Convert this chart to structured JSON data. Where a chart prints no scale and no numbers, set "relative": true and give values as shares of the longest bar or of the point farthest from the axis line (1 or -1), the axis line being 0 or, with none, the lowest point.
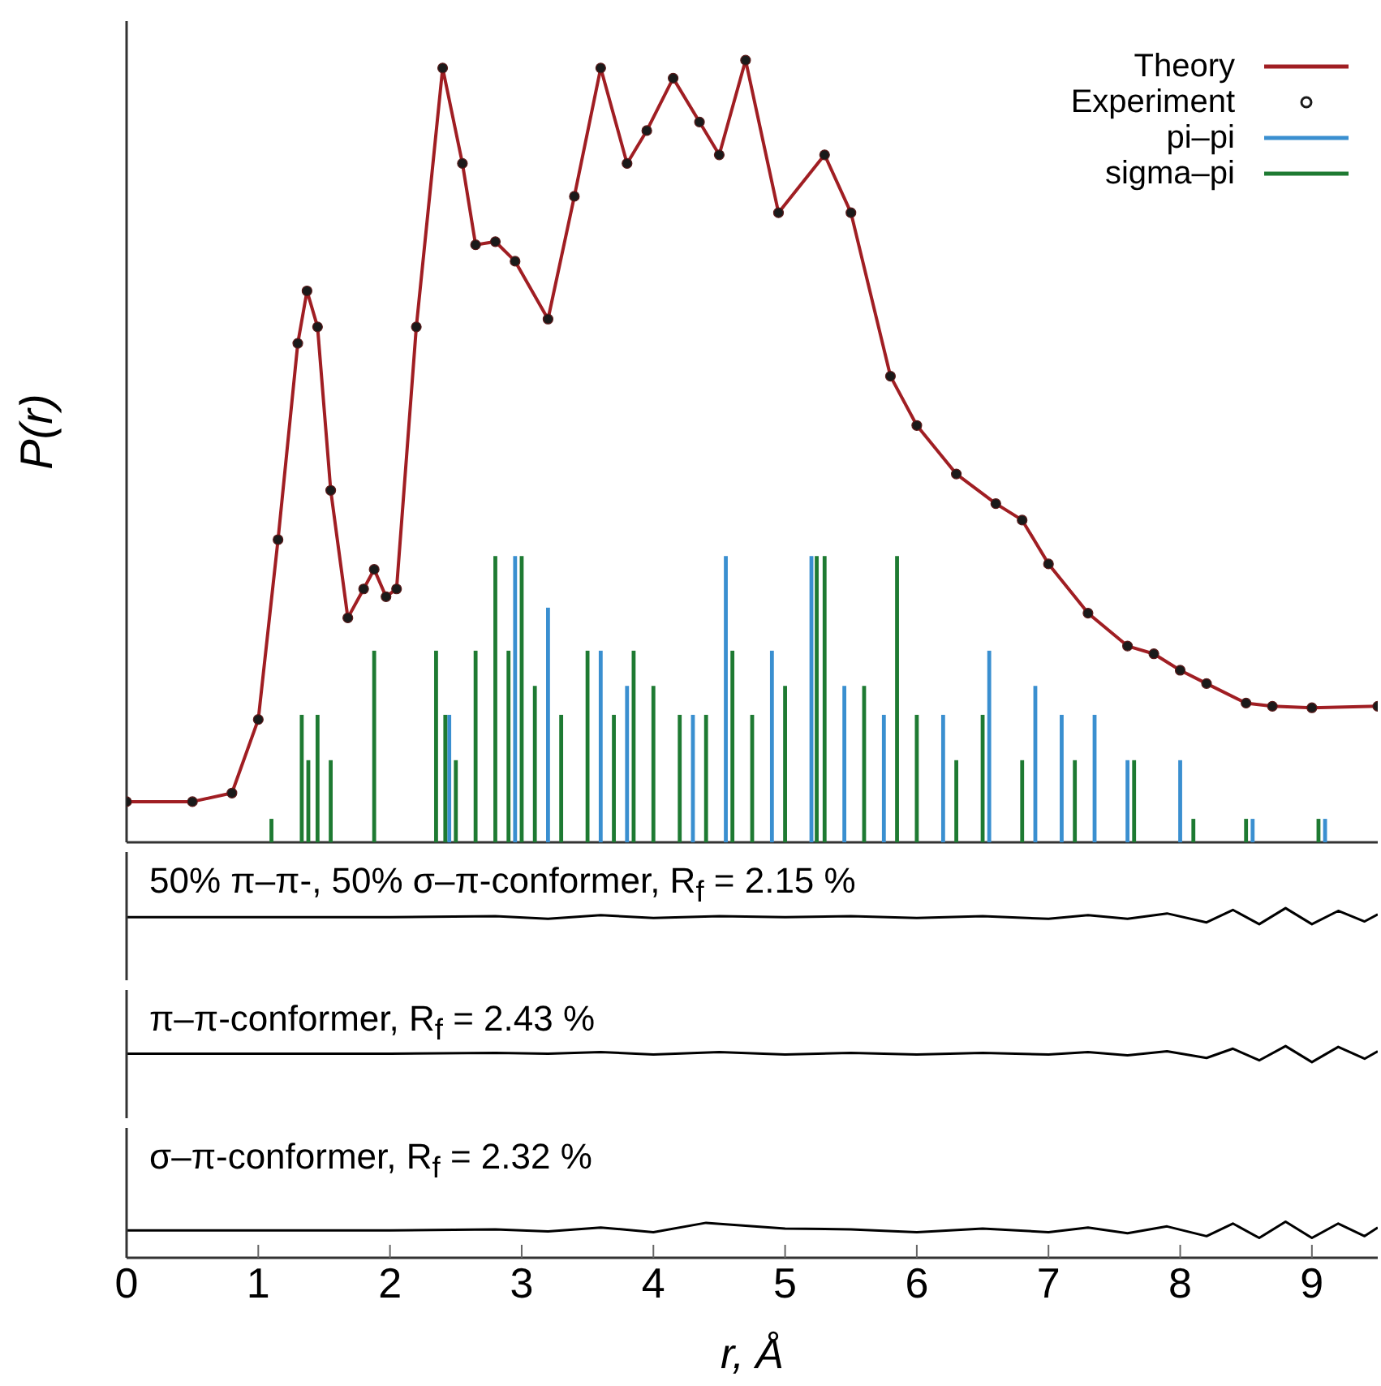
{
  "chart_data": [
    {
      "type": "line",
      "ylabel": "P(r)",
      "relative": true,
      "tick_labels": false,
      "xlim": [
        0,
        9.5
      ],
      "legend": "top right",
      "x": [
        0,
        0.5,
        0.8,
        1.0,
        1.15,
        1.3,
        1.37,
        1.45,
        1.55,
        1.68,
        1.8,
        1.88,
        1.97,
        2.05,
        2.2,
        2.4,
        2.55,
        2.65,
        2.8,
        2.95,
        3.2,
        3.4,
        3.6,
        3.8,
        3.95,
        4.15,
        4.35,
        4.5,
        4.7,
        4.95,
        5.3,
        5.5,
        5.8,
        6.0,
        6.3,
        6.6,
        6.8,
        7.0,
        7.3,
        7.6,
        7.8,
        8.0,
        8.2,
        8.5,
        8.7,
        9.0,
        9.5
      ],
      "series": [
        {
          "name": "Theory",
          "color": "#a01e23",
          "marker": "none",
          "values": [
            0.052,
            0.052,
            0.063,
            0.157,
            0.387,
            0.638,
            0.705,
            0.659,
            0.45,
            0.287,
            0.324,
            0.349,
            0.314,
            0.324,
            0.659,
            0.99,
            0.868,
            0.764,
            0.768,
            0.743,
            0.669,
            0.826,
            0.99,
            0.868,
            0.91,
            0.977,
            0.921,
            0.879,
            1.0,
            0.805,
            0.879,
            0.805,
            0.596,
            0.533,
            0.471,
            0.433,
            0.412,
            0.356,
            0.293,
            0.251,
            0.241,
            0.22,
            0.203,
            0.178,
            0.174,
            0.172,
            0.174
          ]
        },
        {
          "name": "Experiment",
          "type": "scatter",
          "color": "#1a1a1a",
          "marker": "circle",
          "values": [
            0.052,
            0.052,
            0.063,
            0.157,
            0.387,
            0.638,
            0.705,
            0.659,
            0.45,
            0.287,
            0.324,
            0.349,
            0.314,
            0.324,
            0.659,
            0.99,
            0.868,
            0.764,
            0.768,
            0.743,
            0.669,
            0.826,
            0.99,
            0.868,
            0.91,
            0.977,
            0.921,
            0.879,
            1.0,
            0.805,
            0.879,
            0.805,
            0.596,
            0.533,
            0.471,
            0.433,
            0.412,
            0.356,
            0.293,
            0.251,
            0.241,
            0.22,
            0.203,
            0.178,
            0.174,
            0.172,
            0.174
          ]
        },
        {
          "name": "pi–pi",
          "type": "bar",
          "color": "#3a8fd0",
          "x": [
            2.45,
            2.95,
            3.2,
            3.6,
            3.8,
            4.3,
            4.55,
            4.9,
            5.2,
            5.45,
            5.75,
            6.2,
            6.55,
            6.9,
            7.1,
            7.35,
            7.6,
            8.0,
            8.55,
            9.1
          ],
          "values": [
            0.163,
            0.366,
            0.3,
            0.245,
            0.2,
            0.163,
            0.366,
            0.245,
            0.366,
            0.2,
            0.163,
            0.163,
            0.245,
            0.2,
            0.163,
            0.163,
            0.105,
            0.105,
            0.03,
            0.03
          ]
        },
        {
          "name": "sigma–pi",
          "type": "bar",
          "color": "#1e7a32",
          "x": [
            1.1,
            1.33,
            1.38,
            1.45,
            1.55,
            1.88,
            2.35,
            2.42,
            2.5,
            2.65,
            2.8,
            2.9,
            3.0,
            3.1,
            3.3,
            3.5,
            3.7,
            3.85,
            4.0,
            4.2,
            4.4,
            4.6,
            4.75,
            5.0,
            5.24,
            5.3,
            5.6,
            5.85,
            6.0,
            6.3,
            6.5,
            6.8,
            7.2,
            7.65,
            8.1,
            8.5,
            9.05
          ],
          "values": [
            0.03,
            0.163,
            0.105,
            0.163,
            0.105,
            0.245,
            0.245,
            0.163,
            0.105,
            0.245,
            0.366,
            0.245,
            0.366,
            0.2,
            0.163,
            0.245,
            0.163,
            0.245,
            0.2,
            0.163,
            0.163,
            0.245,
            0.163,
            0.2,
            0.366,
            0.366,
            0.2,
            0.366,
            0.163,
            0.105,
            0.163,
            0.105,
            0.105,
            0.105,
            0.03,
            0.03,
            0.03
          ]
        }
      ]
    },
    {
      "type": "line",
      "relative": true,
      "tick_labels": false,
      "xlim": [
        0,
        9.5
      ],
      "color": "#000000",
      "annotations": [
        "50% π–π-, 50% σ–π-conformer, R$_{f}$ = 2.15 %"
      ],
      "x": [
        0,
        1,
        2,
        2.8,
        3.2,
        3.6,
        4.0,
        4.5,
        5,
        5.5,
        6,
        6.5,
        7,
        7.3,
        7.6,
        7.9,
        8.2,
        8.4,
        8.6,
        8.8,
        9.0,
        9.2,
        9.4,
        9.5
      ],
      "values": [
        0.44,
        0.44,
        0.44,
        0.5,
        0.33,
        0.56,
        0.39,
        0.5,
        0.44,
        0.5,
        0.39,
        0.5,
        0.33,
        0.56,
        0.33,
        0.67,
        0.11,
        0.89,
        0,
        1,
        0,
        0.83,
        0.17,
        0.61
      ]
    },
    {
      "type": "line",
      "relative": true,
      "tick_labels": false,
      "xlim": [
        0,
        9.5
      ],
      "color": "#000000",
      "annotations": [
        "π–π-conformer, R$_{f}$ = 2.43 %"
      ],
      "x": [
        0,
        1,
        2,
        2.8,
        3.2,
        3.6,
        4.0,
        4.5,
        5,
        5.5,
        6,
        6.5,
        7,
        7.3,
        7.6,
        7.9,
        8.2,
        8.4,
        8.6,
        8.8,
        9.0,
        9.2,
        9.4,
        9.5
      ],
      "values": [
        0.53,
        0.53,
        0.53,
        0.58,
        0.53,
        0.63,
        0.47,
        0.63,
        0.47,
        0.58,
        0.47,
        0.58,
        0.47,
        0.63,
        0.42,
        0.68,
        0.26,
        0.84,
        0.11,
        1,
        0,
        0.95,
        0.21,
        0.68
      ]
    },
    {
      "type": "line",
      "relative": true,
      "tick_labels": "x",
      "xlim": [
        0,
        9.5
      ],
      "xticks": [
        0,
        1,
        2,
        3,
        4,
        5,
        6,
        7,
        8,
        9
      ],
      "xlabel": "r, Å",
      "color": "#000000",
      "annotations": [
        "σ–π-conformer, R$_{f}$ = 2.32 %"
      ],
      "x": [
        0,
        1,
        2,
        2.8,
        3.2,
        3.6,
        4.0,
        4.4,
        5,
        5.5,
        6,
        6.5,
        7,
        7.3,
        7.6,
        7.9,
        8.2,
        8.4,
        8.6,
        8.8,
        9.0,
        9.2,
        9.4,
        9.5
      ],
      "values": [
        0.76,
        0.76,
        0.76,
        0.79,
        0.73,
        0.84,
        0.71,
        0.97,
        0.81,
        0.79,
        0.71,
        0.81,
        0.71,
        0.84,
        0.68,
        0.87,
        0.6,
        0.95,
        0.55,
        1,
        0.55,
        0.95,
        0.6,
        0.84
      ]
    }
  ]
}
